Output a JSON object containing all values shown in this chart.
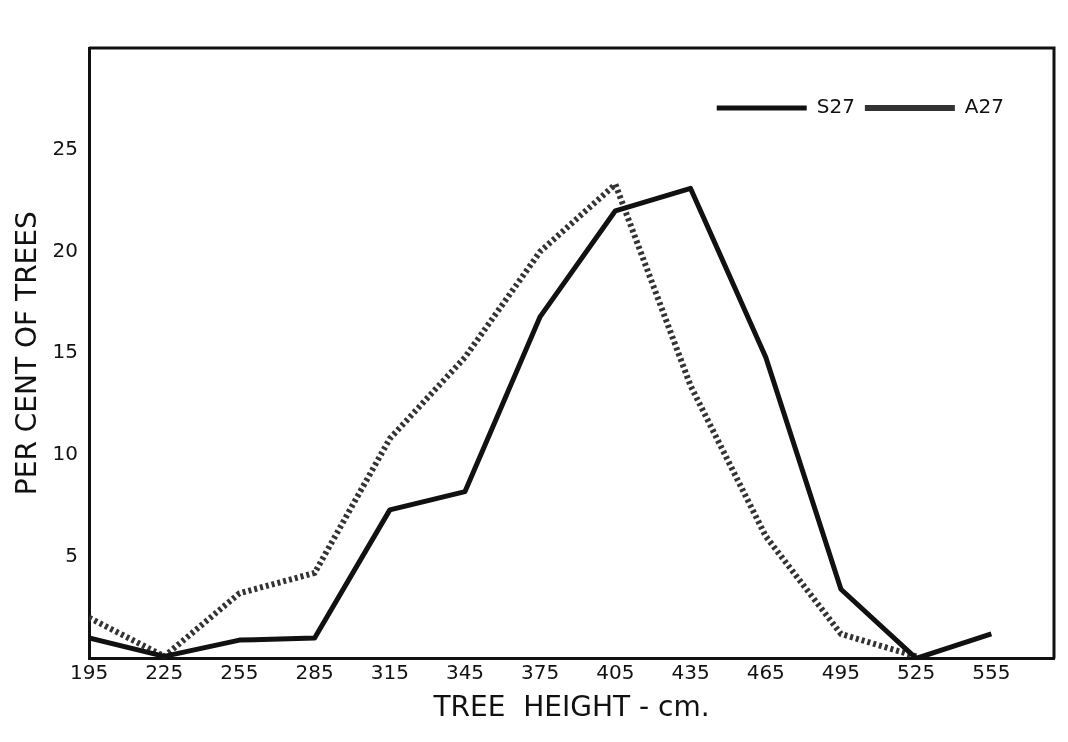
{
  "chart_data": {
    "type": "line",
    "xlabel": "TREE  HEIGHT - cm.",
    "ylabel": "PER CENT OF TREES",
    "xlim": [
      195,
      580
    ],
    "xticks": [
      195,
      225,
      255,
      285,
      315,
      345,
      375,
      405,
      435,
      465,
      495,
      525,
      555
    ],
    "ylim": [
      0,
      30
    ],
    "yticks": [
      5,
      10,
      15,
      20,
      25
    ],
    "grid": false,
    "legend": "top right",
    "marker": "none",
    "series": [
      {
        "name": "S27",
        "color": "#111111",
        "line_style": "solid",
        "x": [
          195,
          225,
          255,
          285,
          315,
          345,
          375,
          405,
          435,
          465,
          495,
          525,
          555
        ],
        "values": [
          1.0,
          0.1,
          0.9,
          1.0,
          7.3,
          8.2,
          16.8,
          22.0,
          23.1,
          14.8,
          3.4,
          0,
          1.2
        ]
      },
      {
        "name": "A27",
        "color": "#333333",
        "line_style": "dotted",
        "x": [
          195,
          225,
          255,
          285,
          315,
          345,
          375,
          405,
          435,
          465,
          495,
          525
        ],
        "values": [
          2.0,
          0.1,
          3.2,
          4.2,
          10.8,
          14.8,
          20.0,
          23.3,
          13.4,
          6.0,
          1.2,
          0.1
        ]
      }
    ]
  }
}
